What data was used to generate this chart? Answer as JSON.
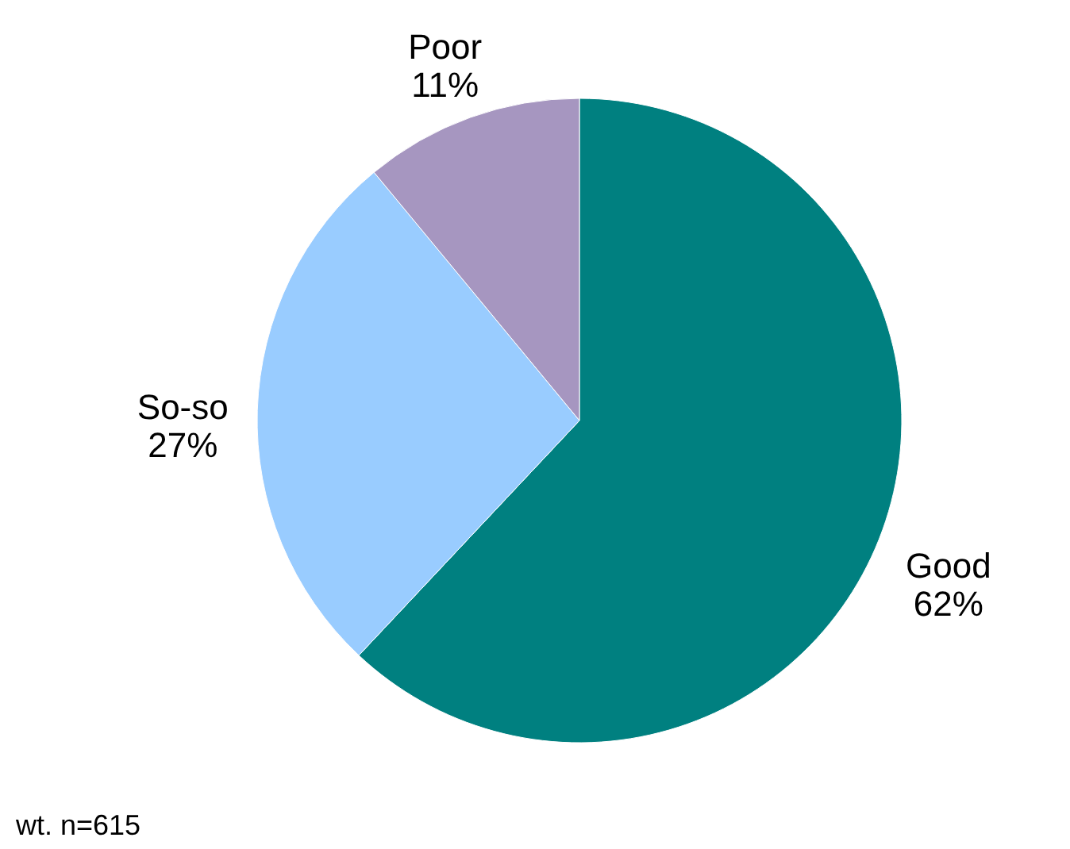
{
  "chart_data": {
    "type": "pie",
    "categories": [
      "Good",
      "So-so",
      "Poor"
    ],
    "values": [
      62,
      27,
      11
    ],
    "colors": [
      "#008080",
      "#99ccff",
      "#a696c0"
    ],
    "value_labels": [
      "62%",
      "27%",
      "11%"
    ],
    "annotations": [
      "wt. n=615"
    ]
  }
}
